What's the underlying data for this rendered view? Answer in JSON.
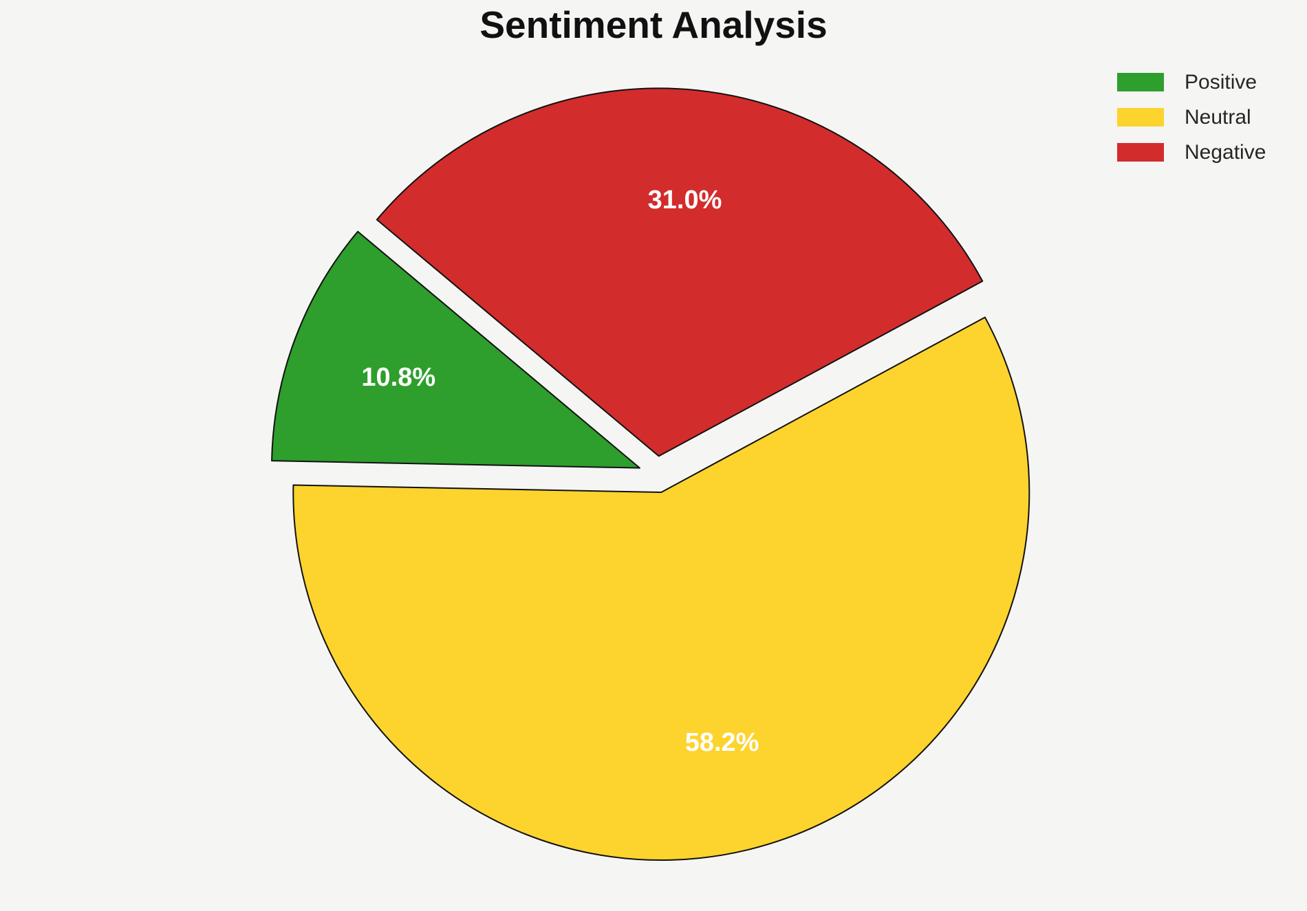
{
  "title": "Sentiment Analysis",
  "background_color": "#F5F5F4",
  "text_color": "#262626",
  "chart_data": {
    "type": "pie",
    "title": "Sentiment Analysis",
    "labels": [
      "Positive",
      "Neutral",
      "Negative"
    ],
    "values": [
      10.8,
      58.2,
      31.0
    ],
    "pct_labels": [
      "10.8%",
      "58.2%",
      "31.0%"
    ],
    "colors": [
      "#2E9E2D",
      "#FDD32E",
      "#D32C2C"
    ],
    "startangle": 140,
    "counterclockwise": true,
    "explode": [
      0.05,
      0.05,
      0.05
    ],
    "pctdistance": 0.7,
    "edge_color": "#111111",
    "edge_width": 2,
    "label_color": "#FFFFFF",
    "legend": {
      "position": "upper right",
      "frame": false,
      "entries": [
        "Positive",
        "Neutral",
        "Negative"
      ]
    }
  }
}
